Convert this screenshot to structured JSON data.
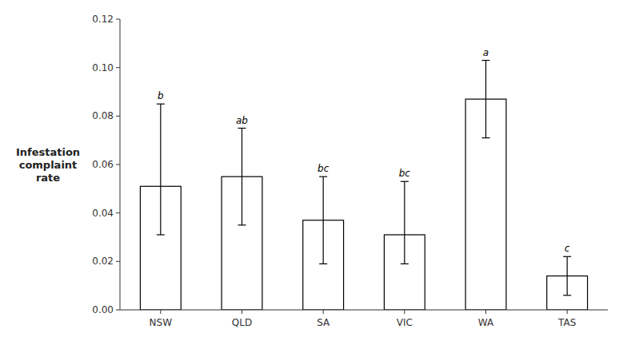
{
  "chart_data": {
    "type": "bar",
    "categories": [
      "NSW",
      "QLD",
      "SA",
      "VIC",
      "WA",
      "TAS"
    ],
    "values": [
      0.051,
      0.055,
      0.037,
      0.031,
      0.087,
      0.014
    ],
    "error_up": [
      0.034,
      0.02,
      0.018,
      0.022,
      0.016,
      0.008
    ],
    "error_down": [
      0.02,
      0.02,
      0.018,
      0.012,
      0.016,
      0.008
    ],
    "annotations": [
      "b",
      "ab",
      "bc",
      "bc",
      "a",
      "c"
    ],
    "ylabel": "Infestation\ncomplaint\nrate",
    "color": "#ffffff",
    "ylim": [
      0.0,
      0.12
    ],
    "yticks": [
      {
        "value": 0.0,
        "label": "0.00"
      },
      {
        "value": 0.02,
        "label": "0.02"
      },
      {
        "value": 0.04,
        "label": "0.04"
      },
      {
        "value": 0.06,
        "label": "0.06"
      },
      {
        "value": 0.08,
        "label": "0.08"
      },
      {
        "value": 0.1,
        "label": "0.10"
      },
      {
        "value": 0.12,
        "label": "0.12"
      }
    ],
    "grid": false
  }
}
